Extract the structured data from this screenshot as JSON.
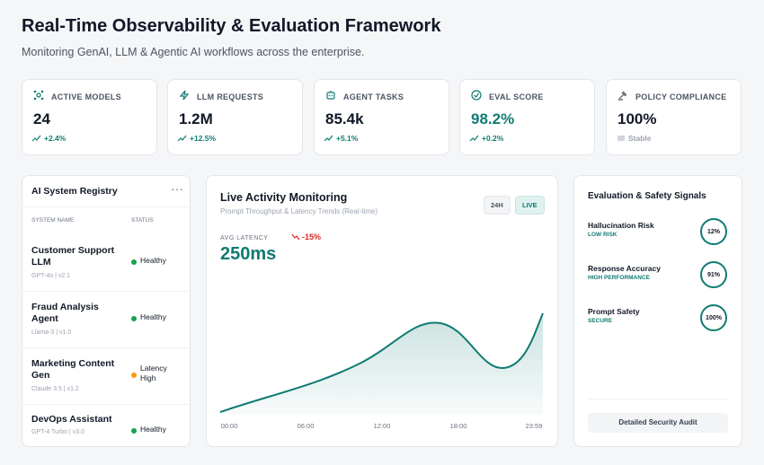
{
  "header": {
    "title": "Real-Time Observability & Evaluation Framework",
    "subtitle": "Monitoring GenAI, LLM & Agentic AI workflows across the enterprise."
  },
  "kpis": [
    {
      "label": "ACTIVE MODELS",
      "value": "24",
      "change": "+2.4%"
    },
    {
      "label": "LLM REQUESTS",
      "value": "1.2M",
      "change": "+12.5%"
    },
    {
      "label": "AGENT TASKS",
      "value": "85.4k",
      "change": "+5.1%"
    },
    {
      "label": "EVAL SCORE",
      "value": "98.2%",
      "change": "+0.2%"
    },
    {
      "label": "POLICY COMPLIANCE",
      "value": "100%",
      "change": "Stable"
    }
  ],
  "registry": {
    "title": "AI System Registry",
    "columns": [
      "SYSTEM NAME",
      "STATUS"
    ],
    "rows": [
      {
        "name": "Customer Support LLM",
        "model": "GPT-4o | v2.1",
        "status": "Healthy"
      },
      {
        "name": "Fraud Analysis Agent",
        "model": "Llama-3 | v1.0",
        "status": "Healthy"
      },
      {
        "name": "Marketing Content Gen",
        "model": "Claude 3.5 | v1.2",
        "status": "Latency High"
      },
      {
        "name": "DevOps Assistant",
        "model": "GPT-4 Turbo | v3.0",
        "status": "Healthy"
      }
    ]
  },
  "activity": {
    "title": "Live Activity Monitoring",
    "subtitle": "Prompt Throughput & Latency Trends (Real-time)",
    "buttons": [
      "24H",
      "LIVE"
    ],
    "metric_label": "AVG LATENCY",
    "metric_value": "250ms",
    "delta": "-15%",
    "x_labels": [
      "00:00",
      "06:00",
      "12:00",
      "18:00",
      "23:59"
    ]
  },
  "signals": {
    "title": "Evaluation & Safety Signals",
    "items": [
      {
        "name": "Hallucination Risk",
        "level": "LOW RISK",
        "value": "12%"
      },
      {
        "name": "Response Accuracy",
        "level": "HIGH PERFORMANCE",
        "value": "91%"
      },
      {
        "name": "Prompt Safety",
        "level": "SECURE",
        "value": "100%"
      }
    ],
    "button": "Detailed Security Audit"
  }
}
